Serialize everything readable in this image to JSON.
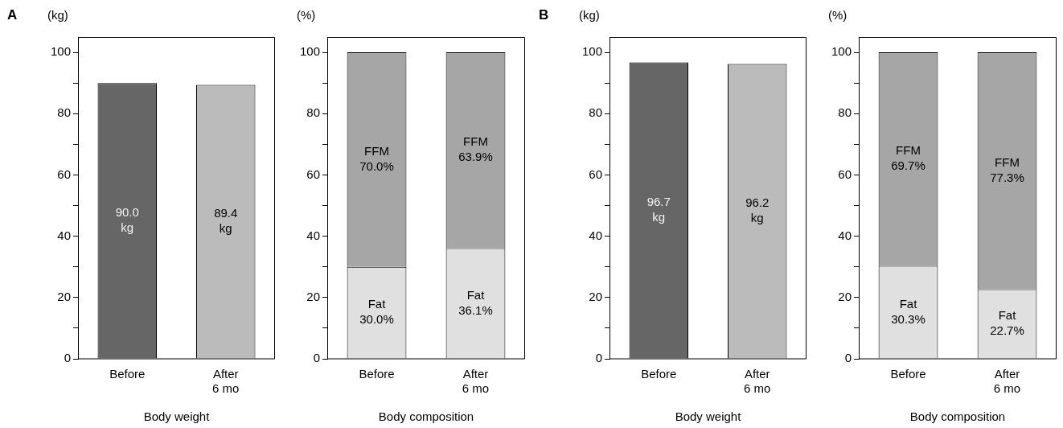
{
  "chart_data": [
    {
      "type": "bar",
      "title": "A",
      "ylabel": "(kg)",
      "xlabel": "Body weight",
      "categories": [
        "Before",
        "After\n6 mo"
      ],
      "values": [
        90.0,
        89.4
      ],
      "colors": [
        "#666666",
        "#bbbbbb"
      ],
      "value_labels": [
        "90.0\nkg",
        "89.4\nkg"
      ],
      "ylim": [
        0,
        105
      ],
      "yticks": [
        0,
        {
          "value": 10,
          "label": null
        },
        20,
        {
          "value": 30,
          "label": null
        },
        40,
        {
          "value": 50,
          "label": null
        },
        60,
        {
          "value": 70,
          "label": null
        },
        80,
        {
          "value": 90,
          "label": null
        },
        100
      ]
    },
    {
      "type": "bar",
      "ylabel": "(%)",
      "xlabel": "Body composition",
      "categories": [
        "Before",
        "After\n6 mo"
      ],
      "stacked": true,
      "series": [
        {
          "name": "Fat",
          "color": "#e0e0e0",
          "values": [
            30.0,
            36.1
          ],
          "value_labels": [
            "30.0%",
            "36.1%"
          ]
        },
        {
          "name": "FFM",
          "color": "#a6a6a6",
          "values": [
            70.0,
            63.9
          ],
          "value_labels": [
            "70.0%",
            "63.9%"
          ]
        }
      ],
      "ylim": [
        0,
        105
      ],
      "yticks": [
        0,
        {
          "value": 10,
          "label": null
        },
        20,
        {
          "value": 30,
          "label": null
        },
        40,
        {
          "value": 50,
          "label": null
        },
        60,
        {
          "value": 70,
          "label": null
        },
        80,
        {
          "value": 90,
          "label": null
        },
        100
      ]
    },
    {
      "type": "bar",
      "title": "B",
      "ylabel": "(kg)",
      "xlabel": "Body weight",
      "categories": [
        "Before",
        "After\n6 mo"
      ],
      "values": [
        96.7,
        96.2
      ],
      "colors": [
        "#666666",
        "#bbbbbb"
      ],
      "value_labels": [
        "96.7\nkg",
        "96.2\nkg"
      ],
      "ylim": [
        0,
        105
      ],
      "yticks": [
        0,
        {
          "value": 10,
          "label": null
        },
        20,
        {
          "value": 30,
          "label": null
        },
        40,
        {
          "value": 50,
          "label": null
        },
        60,
        {
          "value": 70,
          "label": null
        },
        80,
        {
          "value": 90,
          "label": null
        },
        100
      ]
    },
    {
      "type": "bar",
      "ylabel": "(%)",
      "xlabel": "Body composition",
      "categories": [
        "Before",
        "After\n6 mo"
      ],
      "stacked": true,
      "series": [
        {
          "name": "Fat",
          "color": "#e0e0e0",
          "values": [
            30.3,
            22.7
          ],
          "value_labels": [
            "30.3%",
            "22.7%"
          ]
        },
        {
          "name": "FFM",
          "color": "#a6a6a6",
          "values": [
            69.7,
            77.3
          ],
          "value_labels": [
            "69.7%",
            "77.3%"
          ]
        }
      ],
      "ylim": [
        0,
        105
      ],
      "yticks": [
        0,
        {
          "value": 10,
          "label": null
        },
        20,
        {
          "value": 30,
          "label": null
        },
        40,
        {
          "value": 50,
          "label": null
        },
        60,
        {
          "value": 70,
          "label": null
        },
        80,
        {
          "value": 90,
          "label": null
        },
        100
      ]
    }
  ]
}
